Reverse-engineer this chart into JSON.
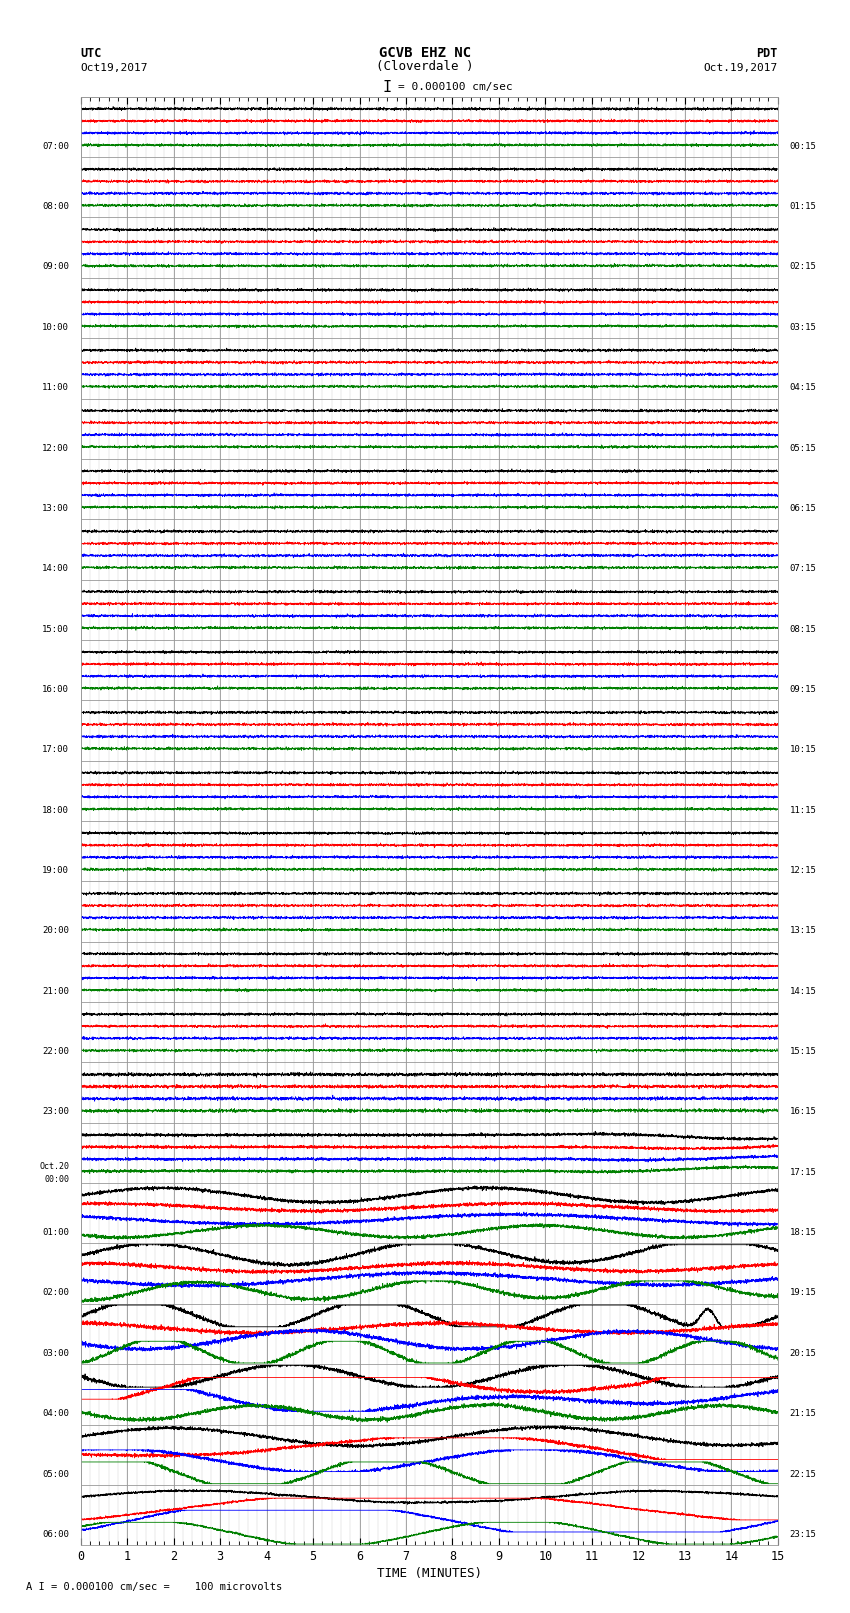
{
  "title_line1": "GCVB EHZ NC",
  "title_line2": "(Cloverdale )",
  "title_scale": "I = 0.000100 cm/sec",
  "xlabel": "TIME (MINUTES)",
  "footer": "A I = 0.000100 cm/sec =    100 microvolts",
  "utc_labels": [
    "07:00",
    "08:00",
    "09:00",
    "10:00",
    "11:00",
    "12:00",
    "13:00",
    "14:00",
    "15:00",
    "16:00",
    "17:00",
    "18:00",
    "19:00",
    "20:00",
    "21:00",
    "22:00",
    "23:00",
    "Oct.20\n00:00",
    "01:00",
    "02:00",
    "03:00",
    "04:00",
    "05:00",
    "06:00"
  ],
  "pdt_labels": [
    "00:15",
    "01:15",
    "02:15",
    "03:15",
    "04:15",
    "05:15",
    "06:15",
    "07:15",
    "08:15",
    "09:15",
    "10:15",
    "11:15",
    "12:15",
    "13:15",
    "14:15",
    "15:15",
    "16:15",
    "17:15",
    "18:15",
    "19:15",
    "20:15",
    "21:15",
    "22:15",
    "23:15"
  ],
  "num_rows": 24,
  "time_minutes": 15,
  "colors": [
    "black",
    "red",
    "blue",
    "green"
  ],
  "background": "#ffffff",
  "grid_color": "#999999",
  "figsize": [
    8.5,
    16.13
  ],
  "dpi": 100
}
